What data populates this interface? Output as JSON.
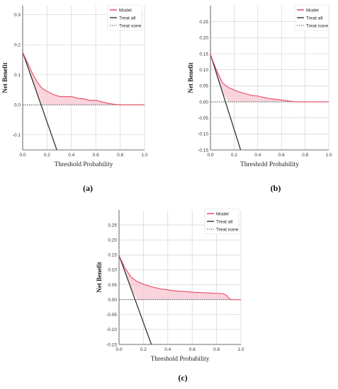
{
  "chart_data": [
    {
      "type": "line",
      "panel": "(a)",
      "xlabel": "Threshold Probability",
      "ylabel": "Net Benefit",
      "xlim": [
        0.0,
        1.0
      ],
      "ylim": [
        -0.15,
        0.33
      ],
      "xticks": [
        "0.0",
        "0.2",
        "0.4",
        "0.6",
        "0.8",
        "1.0"
      ],
      "yticks": [
        {
          "v": -0.1,
          "t": "-0.1"
        },
        {
          "v": 0.0,
          "t": "0.0"
        },
        {
          "v": 0.1,
          "t": "0.1"
        },
        {
          "v": 0.2,
          "t": "0.2"
        },
        {
          "v": 0.3,
          "t": "0.3"
        }
      ],
      "grid": true,
      "legend_position": "top-right",
      "series": [
        {
          "name": "Model",
          "color": "#e8556f",
          "x": [
            0,
            0.04,
            0.08,
            0.12,
            0.16,
            0.2,
            0.25,
            0.3,
            0.35,
            0.4,
            0.45,
            0.5,
            0.55,
            0.6,
            0.65,
            0.7,
            0.75,
            0.8,
            0.9,
            1.0
          ],
          "y": [
            0.175,
            0.14,
            0.105,
            0.075,
            0.055,
            0.045,
            0.035,
            0.028,
            0.027,
            0.028,
            0.022,
            0.02,
            0.015,
            0.015,
            0.01,
            0.005,
            0.002,
            0.0,
            0.0,
            0.0
          ]
        },
        {
          "name": "Treat all",
          "color": "#333333",
          "x": [
            0,
            0.28
          ],
          "y": [
            0.175,
            -0.15
          ]
        },
        {
          "name": "Treat none",
          "color": "#555555",
          "x": [
            0,
            1
          ],
          "y": [
            0,
            0
          ]
        }
      ]
    },
    {
      "type": "line",
      "panel": "(b)",
      "xlabel": "Threshold Probability",
      "ylabel": "Net Benefit",
      "xlim": [
        0.0,
        1.0
      ],
      "ylim": [
        -0.15,
        0.3
      ],
      "xticks": [
        "0.0",
        "0.2",
        "0.4",
        "0.6",
        "0.8",
        "1.0"
      ],
      "yticks": [
        {
          "v": -0.15,
          "t": "-0.15"
        },
        {
          "v": -0.1,
          "t": "-0.10"
        },
        {
          "v": -0.05,
          "t": "-0.05"
        },
        {
          "v": 0.0,
          "t": "0.00"
        },
        {
          "v": 0.05,
          "t": "0.05"
        },
        {
          "v": 0.1,
          "t": "0.10"
        },
        {
          "v": 0.15,
          "t": "0.15"
        },
        {
          "v": 0.2,
          "t": "0.20"
        },
        {
          "v": 0.25,
          "t": "0.25"
        }
      ],
      "grid": true,
      "legend_position": "top-right",
      "series": [
        {
          "name": "Model",
          "color": "#e8556f",
          "x": [
            0,
            0.05,
            0.1,
            0.15,
            0.2,
            0.25,
            0.3,
            0.35,
            0.4,
            0.45,
            0.5,
            0.55,
            0.6,
            0.65,
            0.7,
            0.75,
            0.8,
            1.0
          ],
          "y": [
            0.148,
            0.1,
            0.06,
            0.045,
            0.037,
            0.03,
            0.025,
            0.02,
            0.018,
            0.014,
            0.01,
            0.008,
            0.006,
            0.003,
            0.001,
            0.0,
            0.0,
            0.0
          ]
        },
        {
          "name": "Treat all",
          "color": "#333333",
          "x": [
            0,
            0.255
          ],
          "y": [
            0.148,
            -0.15
          ]
        },
        {
          "name": "Treat none",
          "color": "#555555",
          "x": [
            0,
            1
          ],
          "y": [
            0,
            0
          ]
        }
      ]
    },
    {
      "type": "line",
      "panel": "(c)",
      "xlabel": "Threshold Probability",
      "ylabel": "Net Benefit",
      "xlim": [
        0.0,
        1.0
      ],
      "ylim": [
        -0.15,
        0.3
      ],
      "xticks": [
        "0.0",
        "0.2",
        "0.4",
        "0.6",
        "0.8",
        "1.0"
      ],
      "yticks": [
        {
          "v": -0.15,
          "t": "-0.15"
        },
        {
          "v": -0.1,
          "t": "-0.10"
        },
        {
          "v": -0.05,
          "t": "-0.05"
        },
        {
          "v": 0.0,
          "t": "0.00"
        },
        {
          "v": 0.05,
          "t": "0.05"
        },
        {
          "v": 0.1,
          "t": "0.10"
        },
        {
          "v": 0.15,
          "t": "0.15"
        },
        {
          "v": 0.2,
          "t": "0.20"
        },
        {
          "v": 0.25,
          "t": "0.25"
        }
      ],
      "grid": true,
      "legend_position": "top-right",
      "series": [
        {
          "name": "Model",
          "color": "#e8556f",
          "x": [
            0,
            0.05,
            0.1,
            0.15,
            0.2,
            0.25,
            0.3,
            0.35,
            0.4,
            0.45,
            0.5,
            0.55,
            0.6,
            0.65,
            0.7,
            0.75,
            0.8,
            0.85,
            0.88,
            0.9,
            0.92,
            1.0
          ],
          "y": [
            0.148,
            0.105,
            0.075,
            0.06,
            0.052,
            0.045,
            0.04,
            0.035,
            0.033,
            0.03,
            0.028,
            0.027,
            0.025,
            0.024,
            0.023,
            0.022,
            0.021,
            0.02,
            0.015,
            0.005,
            0.0,
            0.0
          ]
        },
        {
          "name": "Treat all",
          "color": "#333333",
          "x": [
            0,
            0.265
          ],
          "y": [
            0.148,
            -0.15
          ]
        },
        {
          "name": "Treat none",
          "color": "#555555",
          "x": [
            0,
            1
          ],
          "y": [
            0,
            0
          ]
        }
      ]
    }
  ],
  "captions": [
    "(a)",
    "(b)",
    "(c)"
  ],
  "colors": {
    "model": "#e8556f",
    "model_fill": "#f7c6d0",
    "treat_all": "#333333",
    "treat_none": "#555555",
    "grid": "#cccccc"
  }
}
